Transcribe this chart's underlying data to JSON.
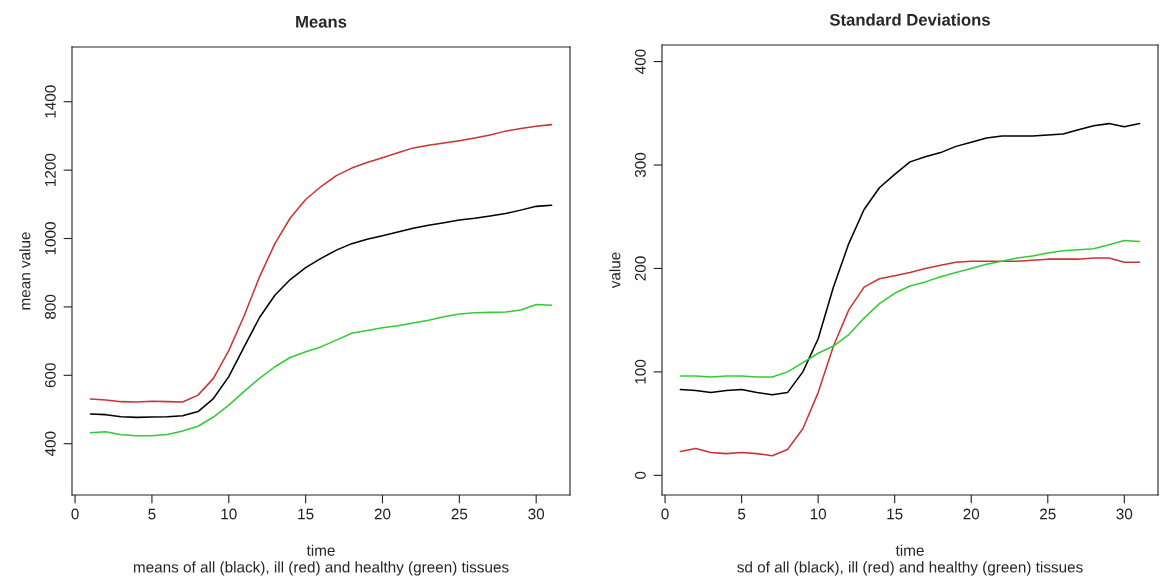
{
  "chart_data": [
    {
      "type": "line",
      "title": "Means",
      "xlabel": "time",
      "ylabel": "mean value",
      "annotations": [
        "means of all (black), ill (red) and healthy (green) tissues"
      ],
      "x": [
        1,
        2,
        3,
        4,
        5,
        6,
        7,
        8,
        9,
        10,
        11,
        12,
        13,
        14,
        15,
        16,
        17,
        18,
        19,
        20,
        21,
        22,
        23,
        24,
        25,
        26,
        27,
        28,
        29,
        30,
        31
      ],
      "xlim": [
        -0.2,
        32.2
      ],
      "xticks": [
        0,
        5,
        10,
        15,
        20,
        25,
        30
      ],
      "ylim": [
        250,
        1560
      ],
      "yticks": [
        400,
        600,
        800,
        1000,
        1200,
        1400
      ],
      "grid": false,
      "series": [
        {
          "color": "#000000",
          "values": [
            487,
            485,
            479,
            477,
            478,
            479,
            482,
            494,
            532,
            596,
            683,
            769,
            834,
            880,
            915,
            942,
            966,
            985,
            998,
            1008,
            1019,
            1030,
            1039,
            1046,
            1054,
            1059,
            1066,
            1073,
            1083,
            1094,
            1097
          ]
        },
        {
          "color": "#cc3333",
          "values": [
            531,
            528,
            523,
            522,
            524,
            523,
            522,
            542,
            591,
            672,
            774,
            888,
            985,
            1060,
            1114,
            1152,
            1184,
            1206,
            1222,
            1236,
            1251,
            1265,
            1273,
            1279,
            1286,
            1294,
            1303,
            1314,
            1322,
            1328,
            1333
          ]
        },
        {
          "color": "#33cc33",
          "values": [
            432,
            435,
            426,
            423,
            423,
            427,
            437,
            451,
            478,
            513,
            553,
            591,
            625,
            652,
            669,
            683,
            703,
            723,
            731,
            739,
            745,
            753,
            761,
            771,
            779,
            783,
            784,
            785,
            791,
            807,
            805
          ]
        }
      ]
    },
    {
      "type": "line",
      "title": "Standard Deviations",
      "xlabel": "time",
      "ylabel": "value",
      "annotations": [
        "sd of all (black), ill (red) and healthy (green) tissues"
      ],
      "x": [
        1,
        2,
        3,
        4,
        5,
        6,
        7,
        8,
        9,
        10,
        11,
        12,
        13,
        14,
        15,
        16,
        17,
        18,
        19,
        20,
        21,
        22,
        23,
        24,
        25,
        26,
        27,
        28,
        29,
        30,
        31
      ],
      "xlim": [
        -0.2,
        32.2
      ],
      "xticks": [
        0,
        5,
        10,
        15,
        20,
        25,
        30
      ],
      "ylim": [
        -19,
        416
      ],
      "yticks": [
        0,
        100,
        200,
        300,
        400
      ],
      "grid": false,
      "series": [
        {
          "color": "#000000",
          "values": [
            83,
            82,
            80,
            82,
            83,
            80,
            78,
            80,
            100,
            132,
            182,
            224,
            257,
            278,
            291,
            303,
            308,
            312,
            318,
            322,
            326,
            328,
            328,
            328,
            329,
            330,
            334,
            338,
            340,
            337,
            340
          ]
        },
        {
          "color": "#cc3333",
          "values": [
            23,
            26,
            22,
            21,
            22,
            21,
            19,
            25,
            45,
            80,
            125,
            160,
            182,
            190,
            193,
            196,
            200,
            203,
            206,
            207,
            207,
            207,
            207,
            208,
            209,
            209,
            209,
            210,
            210,
            206,
            206
          ]
        },
        {
          "color": "#33cc33",
          "values": [
            96,
            96,
            95,
            96,
            96,
            95,
            95,
            100,
            109,
            118,
            125,
            136,
            152,
            166,
            176,
            183,
            187,
            192,
            196,
            200,
            204,
            207,
            210,
            212,
            215,
            217,
            218,
            219,
            223,
            227,
            226
          ]
        }
      ]
    }
  ]
}
